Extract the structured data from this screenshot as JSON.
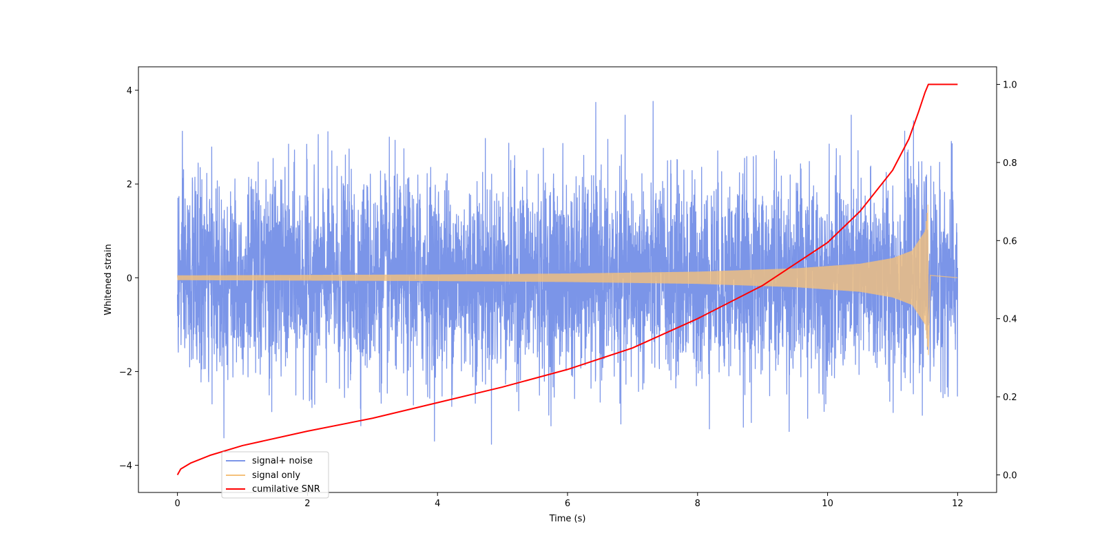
{
  "chart_data": {
    "type": "line",
    "title": "",
    "xlabel": "Time (s)",
    "ylabel": "Whitened strain",
    "y2label": "",
    "xlim": [
      -0.6,
      12.6
    ],
    "ylim": [
      -4.58,
      4.5
    ],
    "y2lim": [
      -0.045,
      1.045
    ],
    "xticks": [
      0,
      2,
      4,
      6,
      8,
      10,
      12
    ],
    "yticks": [
      -4,
      -2,
      0,
      2,
      4
    ],
    "y2ticks": [
      0.0,
      0.2,
      0.4,
      0.6,
      0.8,
      1.0
    ],
    "xtick_labels": [
      "0",
      "2",
      "4",
      "6",
      "8",
      "10",
      "12"
    ],
    "ytick_labels": [
      "−4",
      "−2",
      "0",
      "2",
      "4"
    ],
    "y2tick_labels": [
      "0.0",
      "0.2",
      "0.4",
      "0.6",
      "0.8",
      "1.0"
    ],
    "grid": false,
    "legend_position": "lower-left",
    "series": [
      {
        "name": "signal+ noise",
        "color": "#7b95e8",
        "axis": "left",
        "style": "dense noise band",
        "x_range": [
          0,
          12
        ],
        "noise_std": 1.0,
        "peak_max": 4.1,
        "peak_min": -4.15
      },
      {
        "name": "signal only",
        "color": "#f5c07a",
        "axis": "left",
        "style": "chirp envelope",
        "x_range": [
          0,
          12
        ],
        "merger_time": 11.55,
        "envelope": [
          {
            "t": 0.0,
            "amp": 0.05
          },
          {
            "t": 2.0,
            "amp": 0.06
          },
          {
            "t": 4.0,
            "amp": 0.07
          },
          {
            "t": 6.0,
            "amp": 0.09
          },
          {
            "t": 8.0,
            "amp": 0.13
          },
          {
            "t": 9.5,
            "amp": 0.2
          },
          {
            "t": 10.5,
            "amp": 0.3
          },
          {
            "t": 11.0,
            "amp": 0.42
          },
          {
            "t": 11.3,
            "amp": 0.58
          },
          {
            "t": 11.5,
            "amp": 1.0
          },
          {
            "t": 11.55,
            "amp": 1.65
          }
        ],
        "ringdown_min": -1.2
      },
      {
        "name": "cumilative SNR",
        "color": "#ff0000",
        "axis": "right",
        "style": "line",
        "points": [
          [
            0.0,
            0.0
          ],
          [
            0.05,
            0.015
          ],
          [
            0.2,
            0.03
          ],
          [
            0.5,
            0.05
          ],
          [
            1.0,
            0.075
          ],
          [
            2.0,
            0.112
          ],
          [
            3.0,
            0.145
          ],
          [
            4.0,
            0.185
          ],
          [
            5.0,
            0.225
          ],
          [
            6.0,
            0.27
          ],
          [
            7.0,
            0.325
          ],
          [
            8.0,
            0.4
          ],
          [
            9.0,
            0.485
          ],
          [
            10.0,
            0.595
          ],
          [
            10.5,
            0.675
          ],
          [
            11.0,
            0.78
          ],
          [
            11.25,
            0.86
          ],
          [
            11.4,
            0.93
          ],
          [
            11.5,
            0.98
          ],
          [
            11.55,
            1.0
          ],
          [
            12.0,
            1.0
          ]
        ]
      }
    ]
  }
}
